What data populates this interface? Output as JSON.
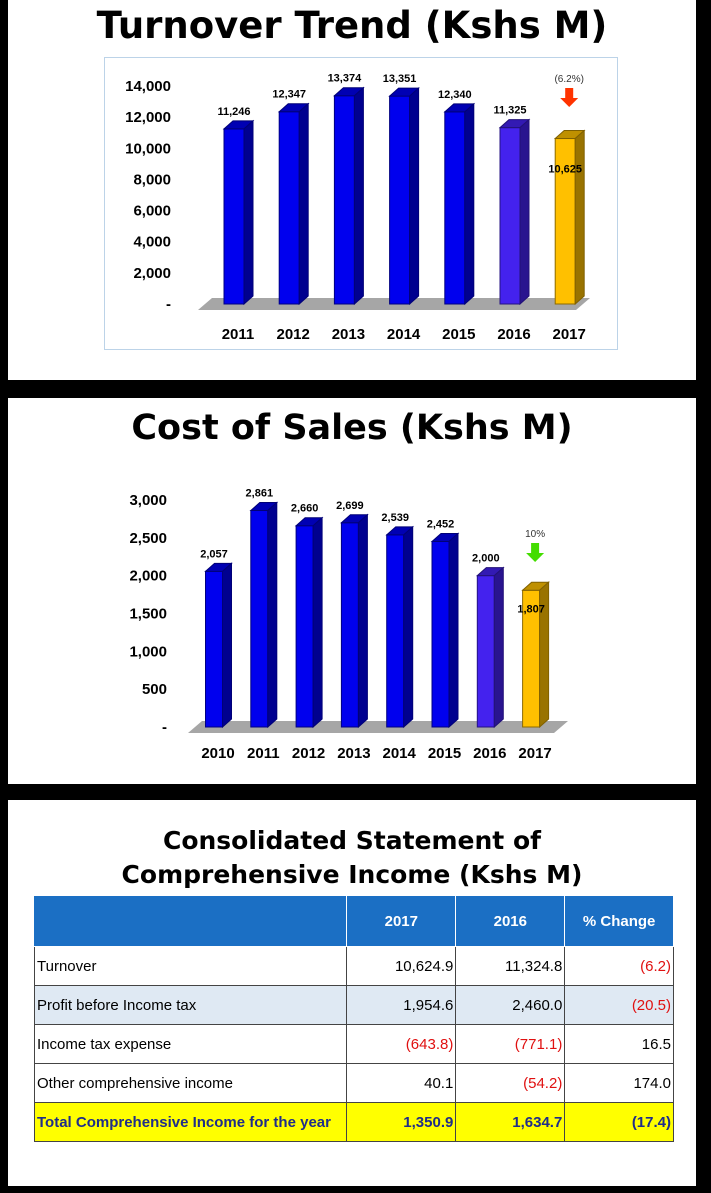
{
  "turnover": {
    "title": "Turnover Trend (Kshs M)",
    "annotation": "(6.2%)",
    "chart_data": {
      "type": "bar",
      "title": "Turnover Trend (Kshs M)",
      "categories": [
        "2011",
        "2012",
        "2013",
        "2014",
        "2015",
        "2016",
        "2017"
      ],
      "values": [
        11246,
        12347,
        13374,
        13351,
        12340,
        11325,
        10625
      ],
      "data_labels": [
        "11,246",
        "12,347",
        "13,374",
        "13,351",
        "12,340",
        "11,325",
        "10,625"
      ],
      "y_ticks": [
        "-",
        "2,000",
        "4,000",
        "6,000",
        "8,000",
        "10,000",
        "12,000",
        "14,000"
      ],
      "ylim": [
        0,
        14000
      ],
      "colors": [
        "#0000ee",
        "#0000ee",
        "#0000ee",
        "#0000ee",
        "#0000ee",
        "#4422ee",
        "#ffc000"
      ],
      "arrow_color": "#ff3300"
    }
  },
  "cost_of_sales": {
    "title": "Cost of Sales (Kshs M)",
    "annotation": "10%",
    "chart_data": {
      "type": "bar",
      "title": "Cost of Sales (Kshs M)",
      "categories": [
        "2010",
        "2011",
        "2012",
        "2013",
        "2014",
        "2015",
        "2016",
        "2017"
      ],
      "values": [
        2057,
        2861,
        2660,
        2699,
        2539,
        2452,
        2000,
        1807
      ],
      "data_labels": [
        "2,057",
        "2,861",
        "2,660",
        "2,699",
        "2,539",
        "2,452",
        "2,000",
        "1,807"
      ],
      "y_ticks": [
        "-",
        "500",
        "1,000",
        "1,500",
        "2,000",
        "2,500",
        "3,000"
      ],
      "ylim": [
        0,
        3000
      ],
      "colors": [
        "#0000ee",
        "#0000ee",
        "#0000ee",
        "#0000ee",
        "#0000ee",
        "#0000ee",
        "#4422ee",
        "#ffc000"
      ],
      "arrow_color": "#44dd00"
    }
  },
  "statement": {
    "title": "Consolidated Statement of Comprehensive Income (Kshs M)",
    "headers": [
      "",
      "2017",
      "2016",
      "% Change"
    ],
    "rows": [
      {
        "label": "Turnover",
        "v2017": "10,624.9",
        "v2016": "11,324.8",
        "change": "(6.2)"
      },
      {
        "label": "Profit before Income tax",
        "v2017": "1,954.6",
        "v2016": "2,460.0",
        "change": "(20.5)"
      },
      {
        "label": "Income tax expense",
        "v2017": "(643.8)",
        "v2016": "(771.1)",
        "change": "16.5"
      },
      {
        "label": "Other comprehensive income",
        "v2017": "40.1",
        "v2016": "(54.2)",
        "change": "174.0"
      },
      {
        "label": "Total Comprehensive Income for the year",
        "v2017": "1,350.9",
        "v2016": "1,634.7",
        "change": "(17.4)"
      }
    ]
  }
}
